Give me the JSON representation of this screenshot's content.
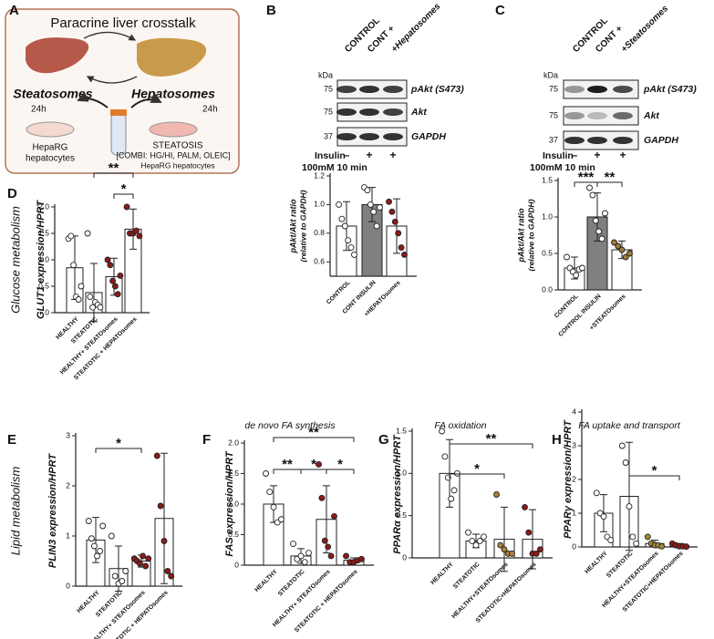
{
  "diagram": {
    "label": "A",
    "title": "Paracrine liver  crosstalk",
    "left": "Steatosomes",
    "right": "Hepatosomes",
    "left_time": "24h",
    "right_time": "24h",
    "left_cells": [
      "HepaRG",
      "hepatocytes"
    ],
    "right_cells": [
      "STEATOSIS",
      "[COMBI: HG/HI, PALM, OLEIC]",
      "HepaRG hepatocytes"
    ]
  },
  "blots": [
    {
      "lanes": [
        "CONTROL",
        "CONT +",
        "+Hepatosomes"
      ],
      "unit": "kDa",
      "rows": [
        {
          "kda": 75,
          "label": "pAkt (S473)"
        },
        {
          "kda": 75,
          "label": "Akt"
        },
        {
          "kda": 37,
          "label": "GAPDH"
        }
      ],
      "treatment": [
        "Insulin",
        "100mM 10 min"
      ],
      "signs": [
        "–",
        "+",
        "+"
      ]
    },
    {
      "lanes": [
        "CONTROL",
        "CONT +",
        "+Steatosomes"
      ],
      "unit": "kDa",
      "rows": [
        {
          "kda": 75,
          "label": "pAkt (S473)"
        },
        {
          "kda": 75,
          "label": "Akt"
        },
        {
          "kda": 37,
          "label": "GAPDH"
        }
      ],
      "treatment": [
        "Insulin",
        "100mM 10 min"
      ],
      "signs": [
        "–",
        "+",
        "+"
      ]
    }
  ],
  "chart_data": [
    {
      "type": "bar",
      "label": "B",
      "ylabel": "pAkt/Akt ratio",
      "ylabel_note": "(relative to GAPDH)",
      "categories": [
        "CONTROL",
        "CONT INSULIN",
        "+HEPATOsomes"
      ],
      "values": [
        0.85,
        1.0,
        0.85
      ],
      "errors": [
        0.17,
        0.12,
        0.19
      ],
      "points": [
        [
          1.0,
          0.9,
          0.85,
          0.75,
          0.7,
          0.65
        ],
        [
          1.12,
          1.1,
          1.0,
          0.95,
          0.85,
          0.98
        ],
        [
          1.02,
          0.95,
          0.88,
          0.8,
          0.7,
          0.65
        ]
      ],
      "bar_colors": [
        "#ffffff",
        "#808080",
        "#ffffff"
      ],
      "point_colors": [
        "#ffffff",
        "#ffffff",
        "#8b1a1a"
      ],
      "ylim": [
        0.5,
        1.2
      ],
      "yticks": [
        0.6,
        0.8,
        {
          "value": 1,
          "label": "1.0"
        },
        1.2
      ],
      "annotations": []
    },
    {
      "type": "bar",
      "label": "C",
      "ylabel": "pAkt/Akt ratio",
      "ylabel_note": "(relative to GAPDH)",
      "categories": [
        "CONTROL",
        "CONTROL INSULIN",
        "+STEATOsomes"
      ],
      "values": [
        0.3,
        1.0,
        0.55
      ],
      "errors": [
        0.15,
        0.33,
        0.12
      ],
      "points": [
        [
          0.45,
          0.3,
          0.25,
          0.2,
          0.28,
          0.3
        ],
        [
          1.4,
          1.3,
          0.95,
          0.8,
          0.7,
          1.05
        ],
        [
          0.65,
          0.6,
          0.55,
          0.45,
          0.5
        ]
      ],
      "bar_colors": [
        "#ffffff",
        "#808080",
        "#ffffff"
      ],
      "point_colors": [
        "#ffffff",
        "#ffffff",
        "#a07a3a"
      ],
      "ylim": [
        0,
        1.5
      ],
      "yticks": [
        {
          "value": 0,
          "label": "0.0"
        },
        0.5,
        {
          "value": 1,
          "label": "1.0"
        },
        1.5
      ],
      "annotations": [
        "***",
        "**"
      ]
    },
    {
      "type": "bar",
      "label": "D",
      "side_label": "Glucose metabolism",
      "ylabel": "GLUT1 expression/HPRT",
      "categories": [
        "HEALTHY",
        "STEATOTIC",
        "HEALTHY+ STEATOsomes",
        "STEATOTIC + HEPATOsomes"
      ],
      "values": [
        0.85,
        0.38,
        0.68,
        1.58
      ],
      "errors": [
        0.6,
        0.55,
        0.35,
        0.38
      ],
      "points": [
        [
          1.4,
          1.45,
          0.9,
          0.3,
          0.25,
          0.5
        ],
        [
          1.5,
          0.3,
          0.1,
          0.2,
          0.15,
          0.1
        ],
        [
          1.0,
          0.9,
          0.6,
          0.5,
          0.35,
          0.7
        ],
        [
          2.0,
          1.5,
          1.5,
          1.55,
          1.45
        ]
      ],
      "bar_colors": [
        "#ffffff",
        "#ffffff",
        "#ffffff",
        "#ffffff"
      ],
      "point_colors": [
        "#ffffff",
        "#ffffff",
        "#8b1a1a",
        "#8b1a1a"
      ],
      "ylim": [
        0,
        2
      ],
      "yticks": [
        0,
        0.5,
        {
          "value": 1,
          "label": "1.0"
        },
        1.5,
        {
          "value": 2,
          "label": "2.0"
        }
      ],
      "annotations": [
        "**",
        "*"
      ]
    },
    {
      "type": "bar",
      "label": "E",
      "side_label": "Lipid metabolism",
      "ylabel": "PLIN3 expression/HPRT",
      "categories": [
        "HEALTHY",
        "STEATOTIC",
        "HEALTHY+ STEATOsomes",
        "STEATOTIC + HEPATOsomes"
      ],
      "values": [
        0.92,
        0.35,
        0.5,
        1.35
      ],
      "errors": [
        0.45,
        0.45,
        0.12,
        1.3
      ],
      "points": [
        [
          1.3,
          0.95,
          0.8,
          0.6,
          0.7,
          1.2
        ],
        [
          1.0,
          0.2,
          0.05,
          0.1,
          0.3
        ],
        [
          0.55,
          0.5,
          0.45,
          0.6,
          0.4,
          0.55
        ],
        [
          2.6,
          1.6,
          0.9,
          0.3,
          0.2
        ]
      ],
      "bar_colors": [
        "#ffffff",
        "#ffffff",
        "#ffffff",
        "#ffffff"
      ],
      "point_colors": [
        "#ffffff",
        "#ffffff",
        "#8b1a1a",
        "#8b1a1a"
      ],
      "ylim": [
        0,
        3
      ],
      "yticks": [
        0,
        1,
        2,
        3
      ],
      "annotations": [
        "*"
      ]
    },
    {
      "type": "bar",
      "label": "F",
      "title": "de novo FA synthesis",
      "ylabel": "FAS expression/HPRT",
      "categories": [
        "HEALTHY",
        "STEATOTIC",
        "HEALTHY+ STEATOsomes",
        "STEATOTIC + HEPATOsomes"
      ],
      "values": [
        1.0,
        0.15,
        0.75,
        0.08
      ],
      "errors": [
        0.3,
        0.12,
        0.55,
        0.04
      ],
      "points": [
        [
          1.5,
          1.2,
          0.95,
          0.7,
          0.75
        ],
        [
          0.35,
          0.1,
          0.15,
          0.05,
          0.2
        ],
        [
          1.65,
          1.1,
          0.4,
          0.3,
          0.15,
          0.8
        ],
        [
          0.15,
          0.05,
          0.05,
          0.08,
          0.1
        ]
      ],
      "bar_colors": [
        "#ffffff",
        "#ffffff",
        "#ffffff",
        "#ffffff"
      ],
      "point_colors": [
        "#ffffff",
        "#ffffff",
        "#8b1a1a",
        "#8b1a1a"
      ],
      "ylim": [
        0,
        2
      ],
      "yticks": [
        0,
        0.5,
        {
          "value": 1,
          "label": "1.0"
        },
        1.5,
        {
          "value": 2,
          "label": "2.0"
        }
      ],
      "annotations": [
        "**",
        "**",
        "*",
        "*"
      ]
    },
    {
      "type": "bar",
      "label": "G",
      "title": "FA oxidation",
      "ylabel": "PPARα expression/HPRT",
      "categories": [
        "HEALTHY",
        "STEATOTIC",
        "HEALTHY+STEATOsomes",
        "STEATOTIC+HEPATOsomes"
      ],
      "values": [
        1.0,
        0.2,
        0.22,
        0.22
      ],
      "errors": [
        0.4,
        0.08,
        0.38,
        0.35
      ],
      "points": [
        [
          1.5,
          1.2,
          0.95,
          0.7,
          0.8,
          1.0
        ],
        [
          0.3,
          0.2,
          0.15,
          0.2,
          0.25
        ],
        [
          0.75,
          0.15,
          0.1,
          0.05,
          0.05
        ],
        [
          0.6,
          0.3,
          0.05,
          0.05,
          0.1
        ]
      ],
      "bar_colors": [
        "#ffffff",
        "#ffffff",
        "#ffffff",
        "#ffffff"
      ],
      "point_colors": [
        "#ffffff",
        "#ffffff",
        "#b0803c",
        "#8b1a1a"
      ],
      "ylim": [
        0,
        1.5
      ],
      "yticks": [
        0,
        0.5,
        {
          "value": 1,
          "label": "1.0"
        },
        1.5
      ],
      "annotations": [
        "**",
        "*"
      ]
    },
    {
      "type": "bar",
      "label": "H",
      "title": "FA uptake and transport",
      "ylabel": "PPARγ expression/HPRT",
      "categories": [
        "HEALTHY",
        "STEATOTIC",
        "HEALTHY+STEATOsomes",
        "STEATOTIC+HEPATOsomes"
      ],
      "values": [
        1.0,
        1.5,
        0.1,
        0.05
      ],
      "errors": [
        0.55,
        1.6,
        0.1,
        0.05
      ],
      "points": [
        [
          1.6,
          1.0,
          0.9,
          0.3,
          0.2
        ],
        [
          3.0,
          2.5,
          1.2,
          0.3,
          0.1
        ],
        [
          0.3,
          0.1,
          0.05,
          0.05,
          0.02
        ],
        [
          0.1,
          0.05,
          0.02,
          0.02,
          0.01
        ]
      ],
      "bar_colors": [
        "#ffffff",
        "#ffffff",
        "#ffffff",
        "#ffffff"
      ],
      "point_colors": [
        "#ffffff",
        "#ffffff",
        "#a08a3a",
        "#8b1a1a"
      ],
      "ylim": [
        0,
        4
      ],
      "yticks": [
        0,
        1,
        2,
        3,
        4
      ],
      "annotations": [
        "*"
      ]
    }
  ]
}
